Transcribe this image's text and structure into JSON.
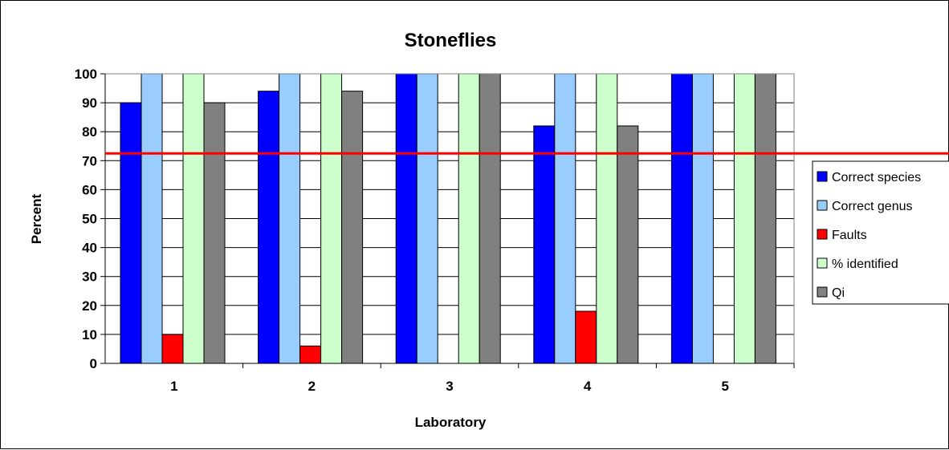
{
  "chart_data": {
    "type": "bar",
    "title": "Stoneflies",
    "xlabel": "Laboratory",
    "ylabel": "Percent",
    "ylim": [
      0,
      100
    ],
    "yticks": [
      0,
      10,
      20,
      30,
      40,
      50,
      60,
      70,
      80,
      90,
      100
    ],
    "categories": [
      "1",
      "2",
      "3",
      "4",
      "5"
    ],
    "series": [
      {
        "name": "Correct species",
        "color": "#0000ff",
        "values": [
          90,
          94,
          100,
          82,
          100
        ]
      },
      {
        "name": "Correct genus",
        "color": "#99ccff",
        "values": [
          100,
          100,
          100,
          100,
          100
        ]
      },
      {
        "name": "Faults",
        "color": "#ff0000",
        "values": [
          10,
          6,
          0,
          18,
          0
        ]
      },
      {
        "name": "% identified",
        "color": "#ccffcc",
        "values": [
          100,
          100,
          100,
          100,
          100
        ]
      },
      {
        "name": "Qi",
        "color": "#808080",
        "values": [
          90,
          94,
          100,
          82,
          100
        ]
      }
    ],
    "reference_line": {
      "value": 72.5,
      "color": "#ff0000"
    },
    "grid": true,
    "legend_position": "right"
  }
}
